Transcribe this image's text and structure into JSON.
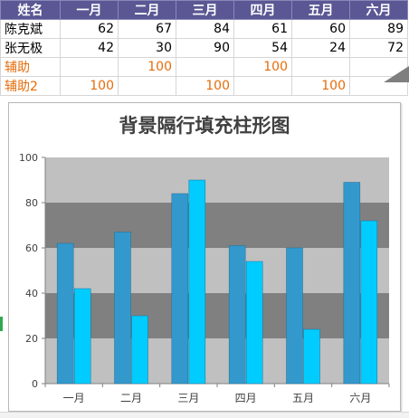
{
  "table": {
    "headers": [
      "姓名",
      "一月",
      "二月",
      "三月",
      "四月",
      "五月",
      "六月"
    ],
    "rows": [
      {
        "name": "陈克斌",
        "values": [
          "62",
          "67",
          "84",
          "61",
          "60",
          "89"
        ],
        "style": "normal"
      },
      {
        "name": "张无极",
        "values": [
          "42",
          "30",
          "90",
          "54",
          "24",
          "72"
        ],
        "style": "normal"
      },
      {
        "name": "辅助",
        "values": [
          "",
          "100",
          "",
          "100",
          "",
          ""
        ],
        "style": "orange"
      },
      {
        "name": "辅助2",
        "values": [
          "100",
          "",
          "100",
          "",
          "100",
          ""
        ],
        "style": "orange"
      }
    ]
  },
  "chart_data": {
    "type": "bar",
    "title": "背景隔行填充柱形图",
    "categories": [
      "一月",
      "二月",
      "三月",
      "四月",
      "五月",
      "六月"
    ],
    "series": [
      {
        "name": "陈克斌",
        "values": [
          62,
          67,
          84,
          61,
          60,
          89
        ],
        "color": "#3399cc"
      },
      {
        "name": "张无极",
        "values": [
          42,
          30,
          90,
          54,
          24,
          72
        ],
        "color": "#00ccff"
      }
    ],
    "ylim": [
      0,
      100
    ],
    "yticks": [
      "0",
      "20",
      "40",
      "60",
      "80",
      "100"
    ],
    "xlabel": "",
    "ylabel": "",
    "grid": false,
    "legend": "none",
    "background_bands": [
      "#c0c0c0",
      "#808080"
    ]
  }
}
